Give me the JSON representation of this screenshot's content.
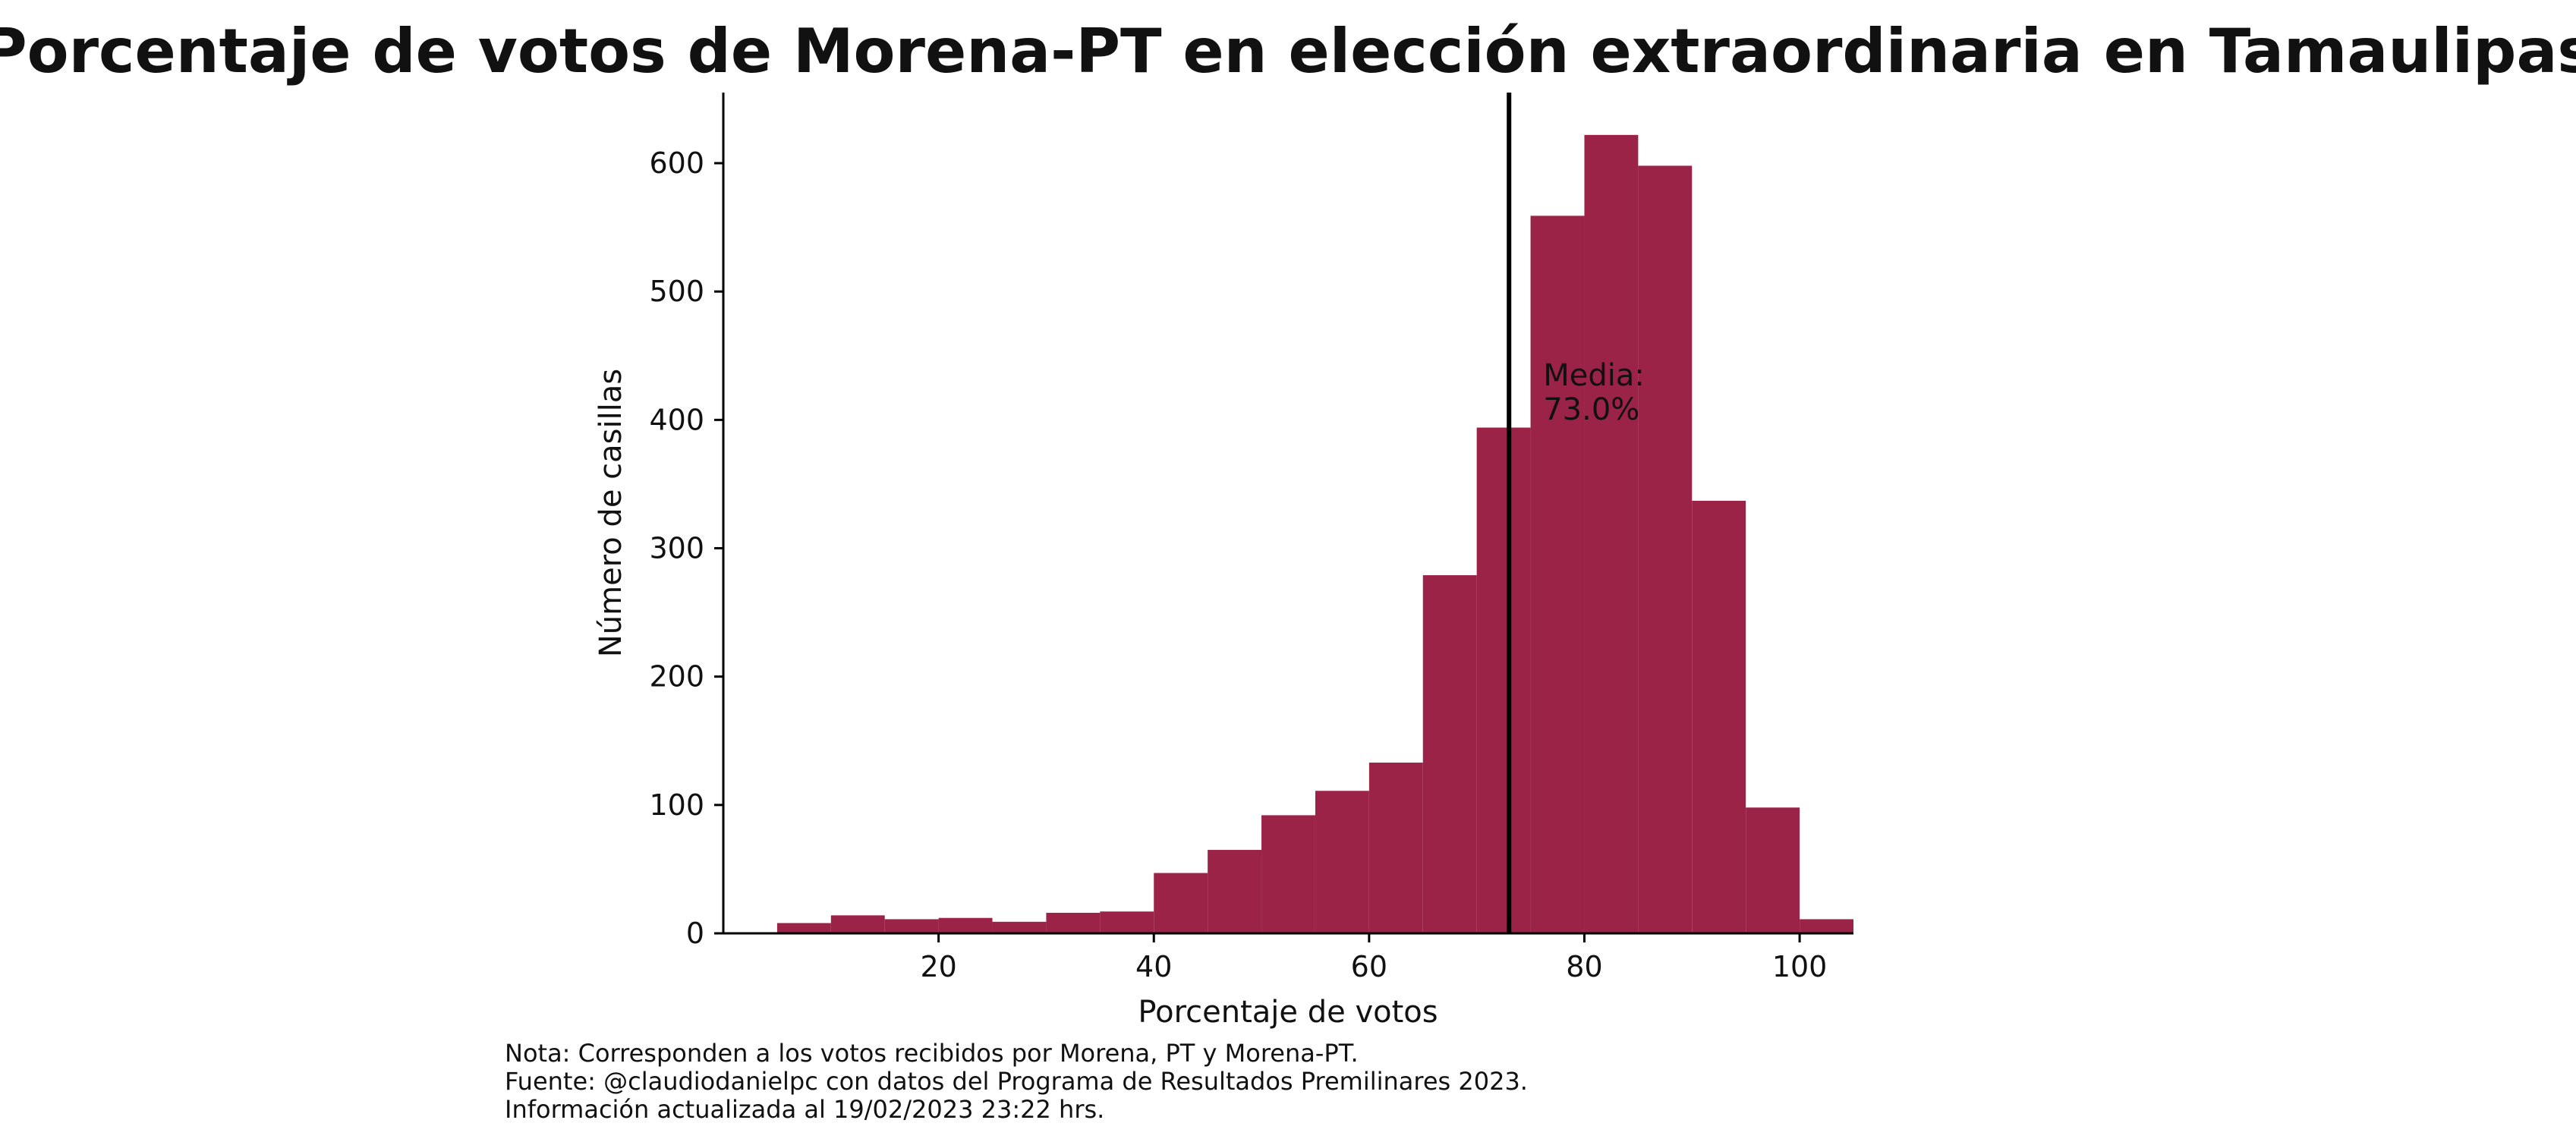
{
  "chart_data": {
    "type": "bar",
    "title": "Porcentaje de votos de Morena-PT en elección extraordinaria en Tamaulipas",
    "xlabel": "Porcentaje de votos",
    "ylabel": "Número de casillas",
    "xlim": [
      0,
      105
    ],
    "ylim": [
      0,
      655
    ],
    "xticks": [
      20,
      40,
      60,
      80,
      100
    ],
    "yticks": [
      0,
      100,
      200,
      300,
      400,
      500,
      600
    ],
    "bar_color": "#9c2348",
    "bins": [
      {
        "x0": 5,
        "x1": 10,
        "value": 8
      },
      {
        "x0": 10,
        "x1": 15,
        "value": 14
      },
      {
        "x0": 15,
        "x1": 20,
        "value": 11
      },
      {
        "x0": 20,
        "x1": 25,
        "value": 12
      },
      {
        "x0": 25,
        "x1": 30,
        "value": 9
      },
      {
        "x0": 30,
        "x1": 35,
        "value": 16
      },
      {
        "x0": 35,
        "x1": 40,
        "value": 17
      },
      {
        "x0": 40,
        "x1": 45,
        "value": 47
      },
      {
        "x0": 45,
        "x1": 50,
        "value": 65
      },
      {
        "x0": 50,
        "x1": 55,
        "value": 92
      },
      {
        "x0": 55,
        "x1": 60,
        "value": 111
      },
      {
        "x0": 60,
        "x1": 65,
        "value": 133
      },
      {
        "x0": 65,
        "x1": 70,
        "value": 279
      },
      {
        "x0": 70,
        "x1": 75,
        "value": 394
      },
      {
        "x0": 75,
        "x1": 80,
        "value": 559
      },
      {
        "x0": 80,
        "x1": 85,
        "value": 622
      },
      {
        "x0": 85,
        "x1": 90,
        "value": 598
      },
      {
        "x0": 90,
        "x1": 95,
        "value": 337
      },
      {
        "x0": 95,
        "x1": 100,
        "value": 98
      },
      {
        "x0": 100,
        "x1": 105,
        "value": 11
      }
    ],
    "mean": {
      "value": 73.0,
      "label_line1": "Media:",
      "label_line2": "73.0%"
    },
    "grid": false
  },
  "footer": {
    "note1": "Nota: Corresponden a los votos recibidos por Morena, PT y Morena-PT.",
    "note2": "Fuente: @claudiodanielpc con datos del Programa de Resultados Premilinares 2023.",
    "note3": "Información actualizada al 19/02/2023 23:22 hrs."
  }
}
